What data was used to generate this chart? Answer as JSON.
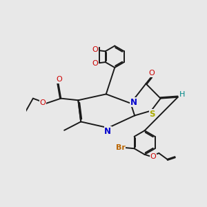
{
  "bg": "#e8e8e8",
  "lc": "#1a1a1a",
  "lw": 1.4,
  "colors": {
    "N": "#0000cc",
    "O": "#cc0000",
    "S": "#aaaa00",
    "Br": "#bb6600",
    "H": "#008888"
  },
  "xlim": [
    0,
    10
  ],
  "ylim": [
    0,
    10
  ]
}
